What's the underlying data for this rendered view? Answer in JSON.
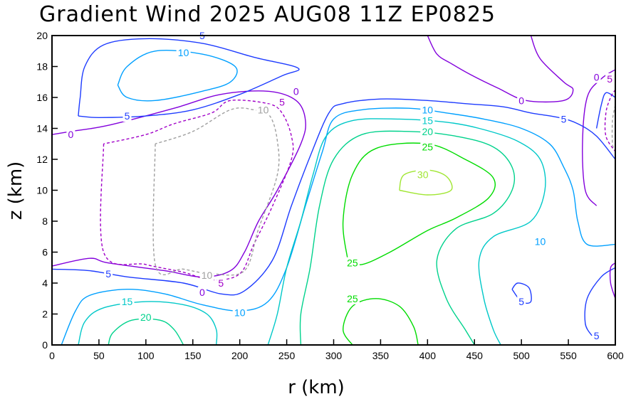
{
  "chart_data": {
    "type": "contour",
    "title": "Gradient Wind 2025 AUG08 11Z  EP0825",
    "xlabel": "r (km)",
    "ylabel": "z (km)",
    "xlim": [
      0,
      600
    ],
    "ylim": [
      0,
      20
    ],
    "x_ticks": [
      0,
      50,
      100,
      150,
      200,
      250,
      300,
      350,
      400,
      450,
      500,
      550,
      600
    ],
    "y_ticks": [
      0,
      2,
      4,
      6,
      8,
      10,
      12,
      14,
      16,
      18,
      20
    ],
    "x_tick_labels": [
      "0",
      "50",
      "100",
      "150",
      "200",
      "250",
      "300",
      "350",
      "400",
      "450",
      "500",
      "550",
      "600"
    ],
    "y_tick_labels": [
      "0",
      "2",
      "4",
      "6",
      "8",
      "10",
      "12",
      "14",
      "16",
      "18",
      "20"
    ],
    "contour_interval": 5,
    "grid": false,
    "levels": [
      {
        "value": -10,
        "color": "#a0a0a0",
        "dashed": true,
        "label": "10"
      },
      {
        "value": -5,
        "color": "#a000c8",
        "dashed": true,
        "label": "5"
      },
      {
        "value": 0,
        "color": "#8200dc",
        "dashed": false,
        "label": "0"
      },
      {
        "value": 5,
        "color": "#1e3cff",
        "dashed": false,
        "label": "5"
      },
      {
        "value": 10,
        "color": "#00a0ff",
        "dashed": false,
        "label": "10"
      },
      {
        "value": 15,
        "color": "#00c8c8",
        "dashed": false,
        "label": "15"
      },
      {
        "value": 20,
        "color": "#00d28c",
        "dashed": false,
        "label": "20"
      },
      {
        "value": 25,
        "color": "#00dc00",
        "dashed": false,
        "label": "25"
      },
      {
        "value": 30,
        "color": "#a0e632",
        "dashed": false,
        "label": "30"
      }
    ],
    "contours": [
      {
        "level": 0,
        "points": [
          [
            0,
            5.1
          ],
          [
            40,
            5.6
          ],
          [
            60,
            5.3
          ],
          [
            120,
            4.8
          ],
          [
            160,
            4.4
          ],
          [
            190,
            4.8
          ],
          [
            205,
            6
          ],
          [
            220,
            8
          ],
          [
            240,
            10
          ],
          [
            265,
            13
          ],
          [
            270,
            14.5
          ],
          [
            260,
            15.8
          ],
          [
            230,
            16.4
          ],
          [
            180,
            16.2
          ],
          [
            130,
            15.3
          ],
          [
            60,
            14.2
          ],
          [
            20,
            13.8
          ],
          [
            0,
            13.6
          ]
        ]
      },
      {
        "level": 0,
        "points": [
          [
            510,
            20
          ],
          [
            520,
            18.5
          ],
          [
            545,
            17
          ],
          [
            555,
            16.5
          ],
          [
            545,
            15.8
          ],
          [
            505,
            15.8
          ],
          [
            475,
            16.6
          ],
          [
            445,
            17.5
          ],
          [
            425,
            18.2
          ],
          [
            410,
            18.8
          ],
          [
            400,
            20
          ]
        ]
      },
      {
        "level": 0,
        "points": [
          [
            600,
            17.8
          ],
          [
            585,
            17.2
          ],
          [
            570,
            16
          ],
          [
            565,
            13
          ],
          [
            568,
            10
          ],
          [
            580,
            9
          ]
        ]
      },
      {
        "level": -5,
        "points": [
          [
            55,
            13
          ],
          [
            55,
            6
          ],
          [
            100,
            5.2
          ],
          [
            140,
            4.7
          ],
          [
            170,
            4.2
          ],
          [
            200,
            4.6
          ],
          [
            215,
            6.5
          ],
          [
            235,
            9
          ],
          [
            255,
            12
          ],
          [
            255,
            13.5
          ],
          [
            245,
            15
          ],
          [
            230,
            15.6
          ],
          [
            190,
            15.8
          ],
          [
            170,
            15
          ],
          [
            130,
            14.3
          ],
          [
            100,
            13.6
          ],
          [
            55,
            13
          ]
        ]
      },
      {
        "level": -10,
        "points": [
          [
            110,
            13
          ],
          [
            110,
            5.2
          ],
          [
            140,
            4.9
          ],
          [
            170,
            4.6
          ],
          [
            205,
            4.8
          ],
          [
            220,
            7.5
          ],
          [
            240,
            11
          ],
          [
            240,
            13.2
          ],
          [
            232,
            14.8
          ],
          [
            215,
            15.2
          ],
          [
            190,
            15.2
          ],
          [
            150,
            13.8
          ],
          [
            110,
            13
          ]
        ]
      },
      {
        "level": 5,
        "points": [
          [
            0,
            4.9
          ],
          [
            40,
            4.8
          ],
          [
            80,
            4.4
          ],
          [
            140,
            4
          ],
          [
            180,
            3.3
          ],
          [
            205,
            3.5
          ],
          [
            235,
            5.5
          ],
          [
            255,
            9
          ],
          [
            275,
            12.2
          ],
          [
            295,
            15
          ],
          [
            310,
            15.6
          ],
          [
            350,
            15.9
          ],
          [
            400,
            15.8
          ],
          [
            440,
            15.6
          ],
          [
            480,
            15.4
          ],
          [
            510,
            15
          ],
          [
            540,
            14.7
          ],
          [
            560,
            14.3
          ],
          [
            580,
            13.5
          ],
          [
            600,
            12
          ]
        ]
      },
      {
        "level": 5,
        "points": [
          [
            28,
            14.8
          ],
          [
            30,
            16
          ],
          [
            35,
            18
          ],
          [
            55,
            19.4
          ],
          [
            100,
            19.8
          ],
          [
            160,
            19.5
          ],
          [
            215,
            18.6
          ],
          [
            262,
            17.9
          ],
          [
            245,
            17.4
          ],
          [
            200,
            16.2
          ],
          [
            150,
            15.2
          ],
          [
            100,
            14.8
          ],
          [
            50,
            14.7
          ],
          [
            28,
            14.8
          ]
        ]
      },
      {
        "level": 5,
        "points": [
          [
            490,
            3.6
          ],
          [
            500,
            2.8
          ],
          [
            510,
            2.8
          ],
          [
            508,
            3.7
          ],
          [
            496,
            4
          ],
          [
            490,
            3.6
          ]
        ]
      },
      {
        "level": 5,
        "points": [
          [
            575,
            0.6
          ],
          [
            568,
            1.4
          ],
          [
            570,
            3
          ],
          [
            585,
            4.4
          ],
          [
            600,
            5
          ]
        ]
      },
      {
        "level": 5,
        "points": [
          [
            600,
            16
          ],
          [
            590,
            16.3
          ],
          [
            585,
            15.5
          ],
          [
            580,
            14
          ]
        ]
      },
      {
        "level": 10,
        "points": [
          [
            10,
            0
          ],
          [
            25,
            2.2
          ],
          [
            40,
            3.2
          ],
          [
            80,
            3.6
          ],
          [
            120,
            3.3
          ],
          [
            160,
            2.6
          ],
          [
            200,
            2.2
          ],
          [
            230,
            2.8
          ],
          [
            250,
            5
          ],
          [
            270,
            9
          ],
          [
            288,
            12.5
          ],
          [
            300,
            14.6
          ],
          [
            330,
            15.2
          ],
          [
            380,
            15.3
          ],
          [
            420,
            15
          ],
          [
            460,
            14.6
          ],
          [
            500,
            14
          ],
          [
            530,
            13
          ],
          [
            545,
            11.5
          ],
          [
            555,
            10
          ],
          [
            560,
            8
          ],
          [
            570,
            6.5
          ],
          [
            600,
            6.5
          ]
        ]
      },
      {
        "level": 10,
        "points": [
          [
            70,
            16.8
          ],
          [
            80,
            18
          ],
          [
            110,
            19
          ],
          [
            160,
            18.8
          ],
          [
            195,
            18
          ],
          [
            190,
            17
          ],
          [
            160,
            16.4
          ],
          [
            110,
            15.8
          ],
          [
            80,
            16
          ],
          [
            70,
            16.8
          ]
        ]
      },
      {
        "level": 15,
        "points": [
          [
            28,
            0
          ],
          [
            35,
            1.5
          ],
          [
            55,
            2.4
          ],
          [
            100,
            2.8
          ],
          [
            140,
            2.6
          ],
          [
            165,
            2
          ],
          [
            175,
            1
          ],
          [
            175,
            0
          ]
        ]
      },
      {
        "level": 15,
        "points": [
          [
            230,
            0
          ],
          [
            240,
            2
          ],
          [
            250,
            5
          ],
          [
            265,
            8
          ],
          [
            278,
            11
          ],
          [
            292,
            13.5
          ],
          [
            320,
            14.5
          ],
          [
            370,
            14.6
          ],
          [
            420,
            14.4
          ],
          [
            455,
            14
          ],
          [
            495,
            13.2
          ],
          [
            520,
            12
          ],
          [
            525,
            10
          ],
          [
            510,
            8
          ],
          [
            470,
            7
          ],
          [
            455,
            5.5
          ],
          [
            460,
            3
          ],
          [
            470,
            1
          ],
          [
            478,
            0
          ]
        ]
      },
      {
        "level": 20,
        "points": [
          [
            60,
            0
          ],
          [
            65,
            0.8
          ],
          [
            85,
            1.6
          ],
          [
            115,
            1.6
          ],
          [
            130,
            1
          ],
          [
            140,
            0
          ]
        ]
      },
      {
        "level": 20,
        "points": [
          [
            265,
            0
          ],
          [
            265,
            2
          ],
          [
            275,
            5
          ],
          [
            285,
            9
          ],
          [
            300,
            12
          ],
          [
            330,
            13.6
          ],
          [
            380,
            13.8
          ],
          [
            430,
            13.5
          ],
          [
            470,
            12.8
          ],
          [
            490,
            11.5
          ],
          [
            490,
            10
          ],
          [
            470,
            8.5
          ],
          [
            430,
            7.5
          ],
          [
            410,
            5.5
          ],
          [
            420,
            3
          ],
          [
            440,
            1
          ],
          [
            450,
            0
          ]
        ]
      },
      {
        "level": 25,
        "points": [
          [
            320,
            0
          ],
          [
            310,
            1
          ],
          [
            320,
            2.5
          ],
          [
            345,
            3
          ],
          [
            370,
            2.5
          ],
          [
            385,
            1.2
          ],
          [
            390,
            0
          ]
        ]
      },
      {
        "level": 25,
        "points": [
          [
            315,
            5.5
          ],
          [
            310,
            8
          ],
          [
            320,
            11
          ],
          [
            345,
            12.7
          ],
          [
            400,
            13
          ],
          [
            440,
            12
          ],
          [
            470,
            10.8
          ],
          [
            465,
            9.5
          ],
          [
            430,
            8.2
          ],
          [
            400,
            7.4
          ],
          [
            360,
            6
          ],
          [
            330,
            5.2
          ],
          [
            315,
            5.5
          ]
        ]
      },
      {
        "level": 30,
        "points": [
          [
            370,
            10
          ],
          [
            375,
            11
          ],
          [
            400,
            11.3
          ],
          [
            420,
            10.9
          ],
          [
            425,
            10
          ],
          [
            400,
            9.7
          ],
          [
            370,
            10
          ]
        ]
      },
      {
        "level": -5,
        "points": [
          [
            600,
            16.5
          ],
          [
            595,
            16
          ],
          [
            590,
            15
          ],
          [
            590,
            13.5
          ],
          [
            600,
            12.5
          ]
        ]
      },
      {
        "level": -10,
        "points": [
          [
            600,
            15.5
          ],
          [
            597,
            14.5
          ],
          [
            597,
            13
          ],
          [
            600,
            12.6
          ]
        ]
      },
      {
        "level": 0,
        "points": [
          [
            600,
            3
          ],
          [
            595,
            4
          ],
          [
            595,
            5
          ],
          [
            600,
            5.3
          ]
        ]
      }
    ],
    "labels": [
      {
        "text": "0",
        "level": 0,
        "x": 20,
        "y": 13.6
      },
      {
        "text": "5",
        "level": 5,
        "x": 80,
        "y": 14.8
      },
      {
        "text": "10",
        "level": 10,
        "x": 140,
        "y": 18.9
      },
      {
        "text": "5",
        "level": 5,
        "x": 160,
        "y": 20
      },
      {
        "text": "0",
        "level": 0,
        "x": 260,
        "y": 16.4
      },
      {
        "text": "5",
        "level": -5,
        "x": 245,
        "y": 15.7
      },
      {
        "text": "10",
        "level": -10,
        "x": 225,
        "y": 15.2
      },
      {
        "text": "5",
        "level": 5,
        "x": 60,
        "y": 4.6
      },
      {
        "text": "0",
        "level": 0,
        "x": 160,
        "y": 3.4
      },
      {
        "text": "5",
        "level": -5,
        "x": 180,
        "y": 4
      },
      {
        "text": "10",
        "level": -10,
        "x": 165,
        "y": 4.5
      },
      {
        "text": "15",
        "level": 15,
        "x": 80,
        "y": 2.8
      },
      {
        "text": "20",
        "level": 20,
        "x": 100,
        "y": 1.8
      },
      {
        "text": "10",
        "level": 10,
        "x": 200,
        "y": 2.1
      },
      {
        "text": "10",
        "level": 10,
        "x": 400,
        "y": 15.2
      },
      {
        "text": "15",
        "level": 15,
        "x": 400,
        "y": 14.5
      },
      {
        "text": "20",
        "level": 20,
        "x": 400,
        "y": 13.8
      },
      {
        "text": "25",
        "level": 25,
        "x": 400,
        "y": 12.8
      },
      {
        "text": "30",
        "level": 30,
        "x": 395,
        "y": 11
      },
      {
        "text": "25",
        "level": 25,
        "x": 320,
        "y": 5.3
      },
      {
        "text": "25",
        "level": 25,
        "x": 320,
        "y": 3
      },
      {
        "text": "0",
        "level": 0,
        "x": 500,
        "y": 15.8
      },
      {
        "text": "5",
        "level": 5,
        "x": 545,
        "y": 14.6
      },
      {
        "text": "10",
        "level": 10,
        "x": 520,
        "y": 6.7
      },
      {
        "text": "5",
        "level": 5,
        "x": 500,
        "y": 2.8
      },
      {
        "text": "5",
        "level": 5,
        "x": 580,
        "y": 0.6
      },
      {
        "text": "0",
        "level": 0,
        "x": 580,
        "y": 17.3
      },
      {
        "text": "5",
        "level": -5,
        "x": 594,
        "y": 17.2
      }
    ]
  }
}
